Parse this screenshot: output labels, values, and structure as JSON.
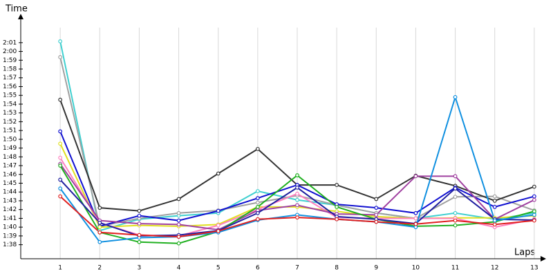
{
  "chart_data": {
    "type": "line",
    "y_label": "Time",
    "x_label": "Laps",
    "x": [
      1,
      2,
      3,
      4,
      5,
      6,
      7,
      8,
      9,
      10,
      11,
      12,
      13
    ],
    "xlim": [
      0,
      13.3
    ],
    "xticks": [
      1,
      2,
      3,
      4,
      5,
      6,
      7,
      8,
      9,
      10,
      11,
      12,
      13
    ],
    "ylim": [
      96.4,
      123.5
    ],
    "yticks": [
      {
        "value": 98,
        "label": "1:38"
      },
      {
        "value": 99,
        "label": "1:39"
      },
      {
        "value": 100,
        "label": "1:40"
      },
      {
        "value": 101,
        "label": "1:41"
      },
      {
        "value": 102,
        "label": "1:42"
      },
      {
        "value": 103,
        "label": "1:43"
      },
      {
        "value": 104,
        "label": "1:44"
      },
      {
        "value": 105,
        "label": "1:45"
      },
      {
        "value": 106,
        "label": "1:46"
      },
      {
        "value": 107,
        "label": "1:47"
      },
      {
        "value": 108,
        "label": "1:48"
      },
      {
        "value": 109,
        "label": "1:49"
      },
      {
        "value": 110,
        "label": "1:50"
      },
      {
        "value": 111,
        "label": "1:51"
      },
      {
        "value": 112,
        "label": "1:52"
      },
      {
        "value": 113,
        "label": "1:53"
      },
      {
        "value": 114,
        "label": "1:54"
      },
      {
        "value": 115,
        "label": "1:55"
      },
      {
        "value": 116,
        "label": "1:56"
      },
      {
        "value": 117,
        "label": "1:57"
      },
      {
        "value": 118,
        "label": "1:58"
      },
      {
        "value": 119,
        "label": "1:59"
      },
      {
        "value": 120,
        "label": "2:00"
      },
      {
        "value": 121,
        "label": "2:01"
      }
    ],
    "grid": "x",
    "series": [
      {
        "color": "#40d0d0",
        "values": [
          121.15,
          99.6,
          100.9,
          101.3,
          101.6,
          104.1,
          103.1,
          102.5,
          101.6,
          101.0,
          101.6,
          100.9,
          101.6
        ]
      },
      {
        "color": "#a0a0a0",
        "values": [
          119.35,
          100.1,
          101.0,
          101.6,
          101.9,
          102.8,
          103.6,
          102.5,
          101.6,
          101.0,
          103.45,
          103.5,
          101.9
        ]
      },
      {
        "color": "#333333",
        "values": [
          114.5,
          102.2,
          101.85,
          103.2,
          106.1,
          108.9,
          104.8,
          104.8,
          103.2,
          105.85,
          104.7,
          103.0,
          104.6
        ]
      },
      {
        "color": "#1010d0",
        "values": [
          110.9,
          100.1,
          101.3,
          100.75,
          101.85,
          103.3,
          104.8,
          102.6,
          102.2,
          101.6,
          104.5,
          102.3,
          103.5
        ]
      },
      {
        "color": "#e0e020",
        "values": [
          109.5,
          100.0,
          100.2,
          100.1,
          100.3,
          102.3,
          102.3,
          101.8,
          101.2,
          101.0,
          101.05,
          101.05,
          101.3
        ]
      },
      {
        "color": "#ff80c0",
        "values": [
          107.9,
          100.5,
          99.1,
          99.0,
          100.2,
          102.0,
          103.8,
          101.1,
          101.0,
          101.0,
          101.0,
          100.0,
          100.9
        ]
      },
      {
        "color": "#a040a0",
        "values": [
          107.2,
          100.75,
          100.4,
          100.3,
          99.7,
          101.9,
          102.5,
          101.5,
          101.4,
          105.8,
          105.8,
          100.9,
          103.1
        ]
      },
      {
        "color": "#20b020",
        "values": [
          107.0,
          99.4,
          98.3,
          98.15,
          99.5,
          102.3,
          105.9,
          102.3,
          100.9,
          100.1,
          100.2,
          100.6,
          101.8
        ]
      },
      {
        "color": "#2020a0",
        "values": [
          105.4,
          100.5,
          99.0,
          99.1,
          99.6,
          101.6,
          104.5,
          101.2,
          100.9,
          100.4,
          104.4,
          100.9,
          100.8
        ]
      },
      {
        "color": "#1090e0",
        "values": [
          104.4,
          98.3,
          98.8,
          98.9,
          99.4,
          100.8,
          101.4,
          100.9,
          100.6,
          100.0,
          114.8,
          100.75,
          101.4
        ]
      },
      {
        "color": "#e02020",
        "values": [
          103.5,
          99.4,
          99.1,
          98.9,
          99.55,
          100.9,
          101.1,
          100.9,
          100.6,
          100.35,
          100.75,
          100.3,
          100.75
        ]
      }
    ]
  }
}
